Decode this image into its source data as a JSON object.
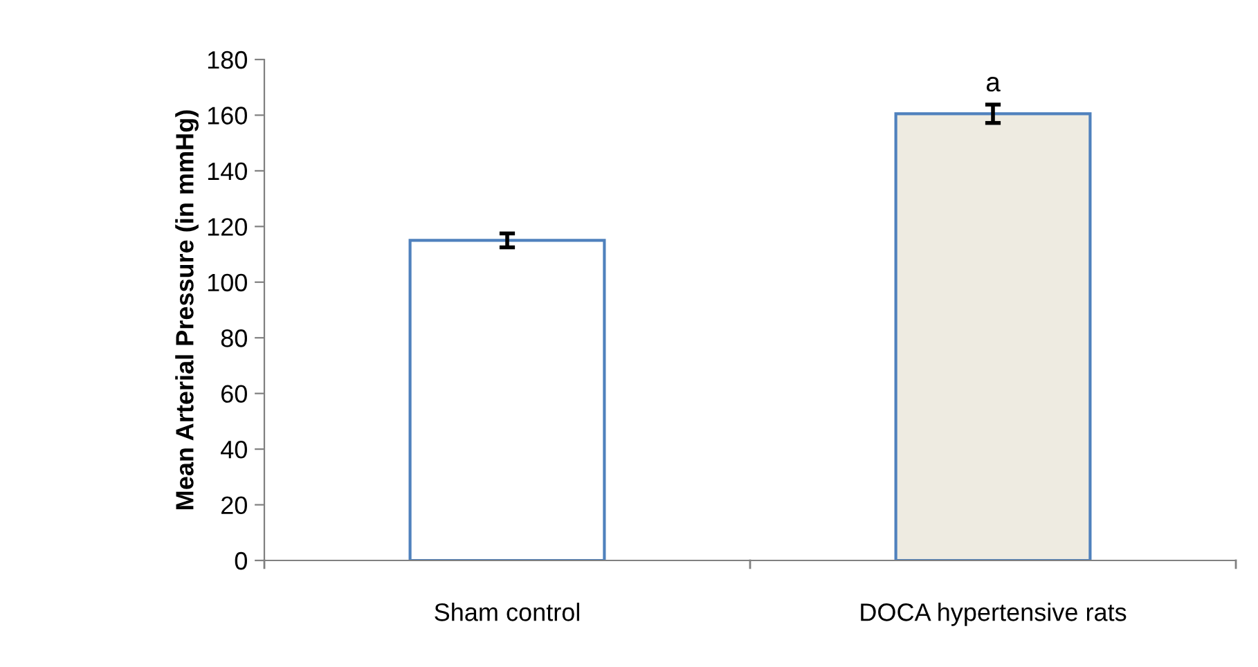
{
  "chart_data": {
    "type": "bar",
    "ylabel": "Mean Arterial Pressure (in mmHg)",
    "categories": [
      "Sham control",
      "DOCA hypertensive rats"
    ],
    "values": [
      115,
      160.5
    ],
    "errors": [
      2.5,
      3.3
    ],
    "colors": [
      "#ffffff",
      "#eeebe1"
    ],
    "ylim": [
      0,
      180
    ],
    "yticks": [
      0,
      20,
      40,
      60,
      80,
      100,
      120,
      140,
      160,
      180
    ],
    "grid": false,
    "legend": false,
    "annotations": [
      {
        "text": "a",
        "x": "DOCA hypertensive rats",
        "y": 163.8
      }
    ]
  }
}
